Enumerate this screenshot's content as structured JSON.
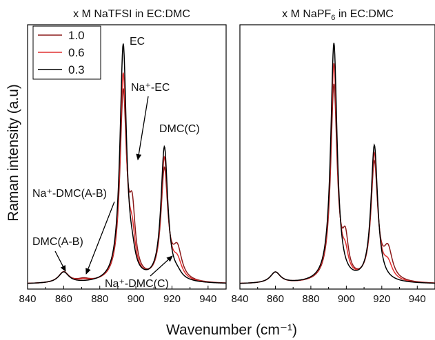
{
  "figure": {
    "ylabel": "Raman intensity (a.u)",
    "xlabel": "Wavenumber (cm⁻¹)"
  },
  "legend": [
    {
      "label": "1.0",
      "color": "#8b1a1a"
    },
    {
      "label": "0.6",
      "color": "#e03030"
    },
    {
      "label": "0.3",
      "color": "#000000"
    }
  ],
  "chart_data": [
    {
      "type": "line",
      "title": "x M NaTFSI in EC:DMC",
      "xlim": [
        840,
        950
      ],
      "ylim": [
        0,
        1.08
      ],
      "xticks": [
        840,
        860,
        880,
        900,
        920,
        940
      ],
      "series": [
        {
          "name": "1.0",
          "color": "#8b1a1a",
          "peaks": [
            [
              860,
              0.045,
              3.5
            ],
            [
              871,
              0.012,
              4
            ],
            [
              893,
              0.76,
              2.2
            ],
            [
              898,
              0.24,
              2.0
            ],
            [
              915.8,
              0.45,
              2.3
            ],
            [
              923,
              0.12,
              3.0
            ]
          ]
        },
        {
          "name": "0.6",
          "color": "#e03030",
          "peaks": [
            [
              860,
              0.045,
              3.5
            ],
            [
              871,
              0.008,
              4
            ],
            [
              893,
              0.84,
              2.2
            ],
            [
              898,
              0.13,
              2.0
            ],
            [
              915.8,
              0.5,
              2.3
            ],
            [
              923,
              0.07,
              3.0
            ]
          ]
        },
        {
          "name": "0.3",
          "color": "#000000",
          "peaks": [
            [
              860,
              0.045,
              3.5
            ],
            [
              893,
              0.97,
              2.2
            ],
            [
              898,
              0.05,
              2.0
            ],
            [
              915.8,
              0.55,
              2.3
            ],
            [
              923,
              0.02,
              3.0
            ]
          ]
        }
      ],
      "annotations": [
        {
          "text": "EC"
        },
        {
          "text": "Na⁺-EC"
        },
        {
          "text": "DMC(C)"
        },
        {
          "text": "Na⁺-DMC(A-B)"
        },
        {
          "text": "DMC(A-B)"
        },
        {
          "text": "Na⁺-DMC(C)"
        }
      ]
    },
    {
      "type": "line",
      "title": "x M NaPF₆ in EC:DMC",
      "xlim": [
        840,
        950
      ],
      "ylim": [
        0,
        1.08
      ],
      "xticks": [
        840,
        860,
        880,
        900,
        920,
        940
      ],
      "series": [
        {
          "name": "1.0",
          "color": "#8b1a1a",
          "peaks": [
            [
              860,
              0.045,
              3.5
            ],
            [
              893,
              0.8,
              2.2
            ],
            [
              899.5,
              0.14,
              2.0
            ],
            [
              915.8,
              0.48,
              2.3
            ],
            [
              923.5,
              0.12,
              3.0
            ]
          ]
        },
        {
          "name": "0.6",
          "color": "#e03030",
          "peaks": [
            [
              860,
              0.045,
              3.5
            ],
            [
              893,
              0.89,
              2.2
            ],
            [
              899.5,
              0.07,
              2.0
            ],
            [
              915.8,
              0.52,
              2.3
            ],
            [
              923.5,
              0.06,
              3.0
            ]
          ]
        },
        {
          "name": "0.3",
          "color": "#000000",
          "peaks": [
            [
              860,
              0.045,
              3.5
            ],
            [
              893,
              0.98,
              2.2
            ],
            [
              915.8,
              0.56,
              2.3
            ]
          ]
        }
      ]
    }
  ]
}
